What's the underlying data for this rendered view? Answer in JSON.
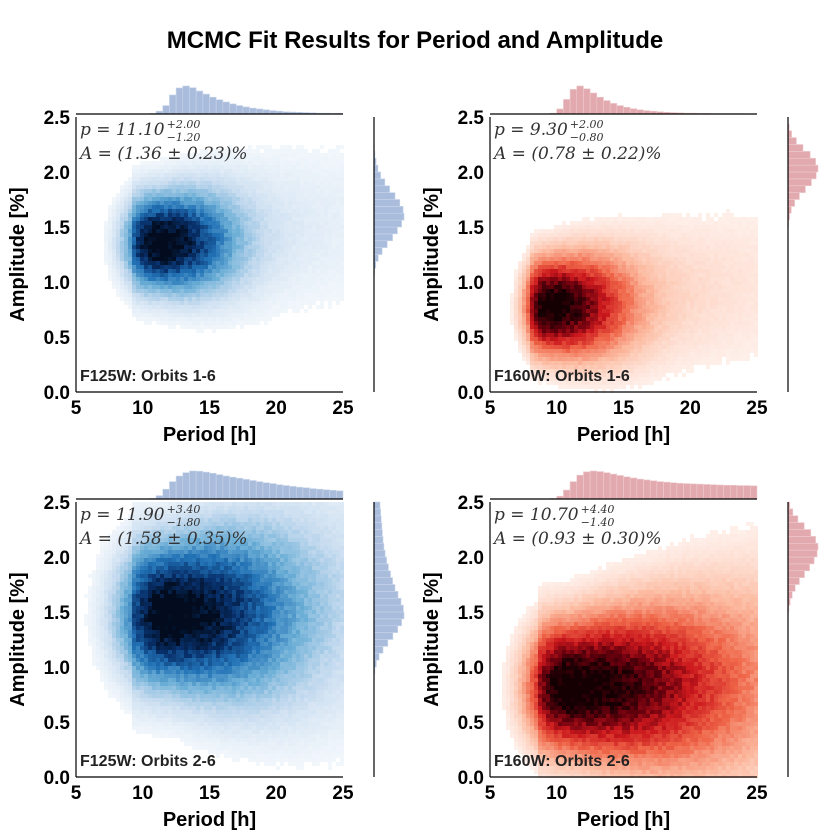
{
  "figure_title": "MCMC Fit Results for Period and Amplitude",
  "colors": {
    "blue_hist": "#a9bcdc",
    "blue_hist_edge": "#c9d6ea",
    "red_hist": "#e2a9ae",
    "red_hist_edge": "#eecbce",
    "blue_dark": "#08306b",
    "red_dark": "#67000d"
  },
  "chart_data": [
    {
      "type": "heatmap",
      "panel": "top-left",
      "cmap": "blue",
      "xlabel": "Period [h]",
      "ylabel": "Amplitude [%]",
      "xlim": [
        5,
        25
      ],
      "ylim": [
        0.0,
        2.5
      ],
      "x_ticks": [
        "5",
        "10",
        "15",
        "20",
        "25"
      ],
      "y_ticks": [
        "0.0",
        "0.5",
        "1.0",
        "1.5",
        "2.0",
        "2.5"
      ],
      "filter_label": "F125W: Orbits 1-6",
      "annotation": {
        "p_text": "p = 11.10",
        "p_sup": "+2.00",
        "p_sub": "−1.20",
        "a_text": "A = (1.36 ± 0.23)%"
      },
      "peak": [
        11.1,
        1.36
      ],
      "spread": {
        "period_lo": 1.2,
        "period_hi": 2.0,
        "amp": 0.23
      },
      "x_marginal": [
        0,
        0,
        0,
        0,
        0,
        0,
        0,
        0,
        0,
        0,
        0,
        2,
        10,
        30,
        68,
        93,
        100,
        94,
        82,
        71,
        60,
        51,
        43,
        36,
        30,
        25,
        21,
        18,
        15,
        12,
        10,
        8,
        7,
        6,
        5,
        4,
        3,
        3,
        2,
        2
      ],
      "y_marginal": [
        0,
        0,
        0,
        0,
        0,
        0,
        0,
        0,
        0,
        0,
        0,
        0,
        0,
        0,
        0,
        0,
        0,
        2,
        6,
        14,
        27,
        44,
        62,
        78,
        92,
        100,
        97,
        86,
        70,
        52,
        36,
        22,
        13,
        7,
        3,
        1,
        0,
        0,
        0,
        0
      ]
    },
    {
      "type": "heatmap",
      "panel": "top-right",
      "cmap": "red",
      "xlabel": "Period [h]",
      "ylabel": "Amplitude [%]",
      "xlim": [
        5,
        25
      ],
      "ylim": [
        0.0,
        2.5
      ],
      "x_ticks": [
        "5",
        "10",
        "15",
        "20",
        "25"
      ],
      "y_ticks": [
        "0.0",
        "0.5",
        "1.0",
        "1.5",
        "2.0",
        "2.5"
      ],
      "filter_label": "F160W: Orbits 1-6",
      "annotation": {
        "p_text": "p = 9.30",
        "p_sup": "+2.00",
        "p_sub": "−0.80",
        "a_text": "A = (0.78 ± 0.22)%"
      },
      "peak": [
        9.3,
        0.78
      ],
      "spread": {
        "period_lo": 0.8,
        "period_hi": 2.0,
        "amp": 0.22
      },
      "x_marginal": [
        0,
        0,
        0,
        0,
        0,
        0,
        0,
        0,
        0,
        3,
        18,
        52,
        88,
        100,
        90,
        75,
        60,
        48,
        38,
        30,
        24,
        19,
        15,
        12,
        10,
        8,
        6,
        5,
        4,
        3,
        3,
        2,
        2,
        1,
        1,
        1,
        1,
        1,
        0,
        0
      ],
      "y_marginal": [
        0,
        0,
        0,
        0,
        0,
        0,
        0,
        0,
        0,
        0,
        0,
        0,
        0,
        0,
        0,
        0,
        0,
        0,
        0,
        0,
        0,
        0,
        0,
        0,
        2,
        5,
        11,
        22,
        38,
        58,
        78,
        94,
        100,
        92,
        74,
        50,
        28,
        12,
        4,
        1
      ]
    },
    {
      "type": "heatmap",
      "panel": "bottom-left",
      "cmap": "blue",
      "xlabel": "Period [h]",
      "ylabel": "Amplitude [%]",
      "xlim": [
        5,
        25
      ],
      "ylim": [
        0.0,
        2.5
      ],
      "x_ticks": [
        "5",
        "10",
        "15",
        "20",
        "25"
      ],
      "y_ticks": [
        "0.0",
        "0.5",
        "1.0",
        "1.5",
        "2.0",
        "2.5"
      ],
      "filter_label": "F125W: Orbits 2-6",
      "annotation": {
        "p_text": "p = 11.90",
        "p_sup": "+3.40",
        "p_sub": "−1.80",
        "a_text": "A = (1.58 ± 0.35)%"
      },
      "peak": [
        11.9,
        1.48
      ],
      "spread": {
        "period_lo": 1.8,
        "period_hi": 3.4,
        "amp": 0.35
      },
      "x_marginal": [
        0,
        0,
        0,
        0,
        0,
        0,
        0,
        0,
        0,
        0,
        0,
        2,
        12,
        35,
        62,
        82,
        94,
        100,
        99,
        96,
        92,
        87,
        82,
        78,
        74,
        70,
        66,
        62,
        58,
        55,
        51,
        48,
        45,
        42,
        40,
        37,
        35,
        33,
        31,
        29
      ],
      "y_marginal": [
        0,
        0,
        0,
        0,
        0,
        0,
        0,
        0,
        0,
        0,
        0,
        0,
        0,
        0,
        1,
        3,
        8,
        17,
        30,
        46,
        63,
        79,
        92,
        100,
        98,
        90,
        80,
        70,
        62,
        55,
        48,
        42,
        37,
        33,
        30,
        28,
        26,
        24,
        22,
        20
      ]
    },
    {
      "type": "heatmap",
      "panel": "bottom-right",
      "cmap": "red",
      "xlabel": "Period [h]",
      "ylabel": "Amplitude [%]",
      "xlim": [
        5,
        25
      ],
      "ylim": [
        0.0,
        2.5
      ],
      "x_ticks": [
        "5",
        "10",
        "15",
        "20",
        "25"
      ],
      "y_ticks": [
        "0.0",
        "0.5",
        "1.0",
        "1.5",
        "2.0",
        "2.5"
      ],
      "filter_label": "F160W: Orbits 2-6",
      "annotation": {
        "p_text": "p = 10.70",
        "p_sup": "+4.40",
        "p_sub": "−1.40",
        "a_text": "A = (0.93 ± 0.30)%"
      },
      "peak": [
        10.7,
        0.82
      ],
      "spread": {
        "period_lo": 1.4,
        "period_hi": 4.4,
        "amp": 0.3
      },
      "x_marginal": [
        0,
        0,
        0,
        0,
        0,
        0,
        0,
        0,
        0,
        2,
        10,
        32,
        62,
        85,
        97,
        100,
        98,
        94,
        89,
        84,
        79,
        75,
        71,
        68,
        65,
        62,
        60,
        58,
        56,
        55,
        54,
        53,
        52,
        51,
        50,
        49,
        49,
        48,
        48,
        47
      ],
      "y_marginal": [
        0,
        0,
        0,
        0,
        0,
        0,
        0,
        0,
        0,
        0,
        0,
        0,
        0,
        0,
        0,
        0,
        0,
        0,
        0,
        0,
        0,
        0,
        0,
        1,
        3,
        7,
        14,
        24,
        38,
        55,
        72,
        87,
        97,
        100,
        92,
        76,
        54,
        33,
        16,
        6
      ]
    }
  ]
}
